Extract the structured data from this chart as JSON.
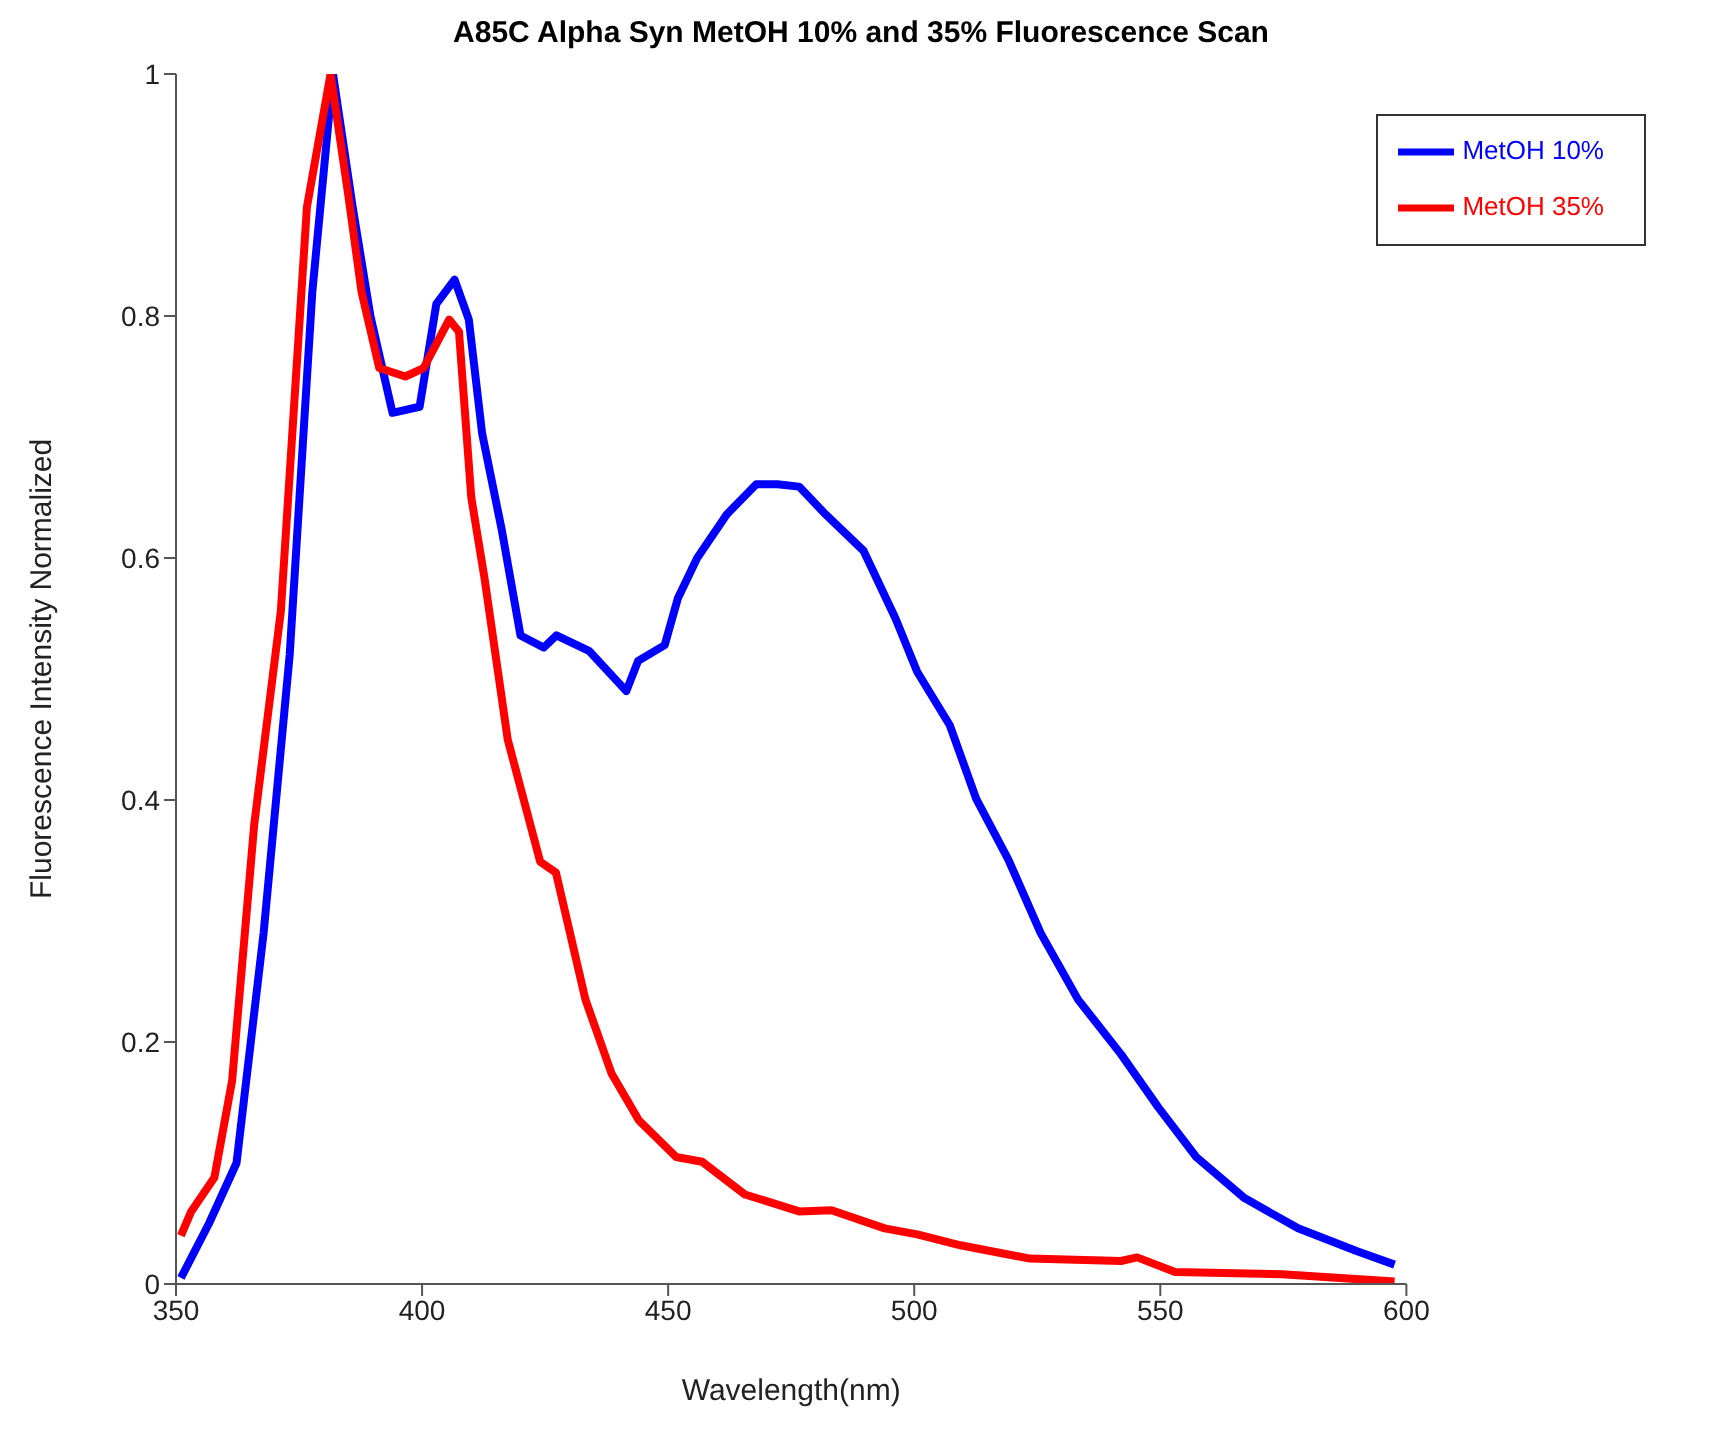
{
  "chart_data": {
    "type": "line",
    "title": "A85C Alpha Syn MetOH 10% and 35% Fluorescence Scan",
    "xlabel": "Wavelength(nm)",
    "ylabel": "Fluorescence Intensity Normalized",
    "xlim": [
      350,
      600
    ],
    "xticks": [
      350,
      400,
      450,
      500,
      550,
      600
    ],
    "ylim": [
      0,
      1
    ],
    "yticks": [
      0,
      0.2,
      0.4,
      0.6,
      0.8,
      1
    ],
    "grid": false,
    "legend": "top right",
    "marker": "none",
    "line_style": "solid",
    "series": [
      {
        "name": "MetOH 10%",
        "color": "#0000ff",
        "x": [
          351,
          356.7,
          362.3,
          367.8,
          373.1,
          377.7,
          381.9,
          385.9,
          389.5,
          394,
          399.5,
          402.9,
          406.6,
          409.5,
          412.2,
          416.2,
          420,
          424.7,
          427.3,
          434,
          441.5,
          443.9,
          449.3,
          452,
          455.9,
          461.9,
          467.9,
          472.2,
          476.6,
          482,
          489.7,
          496.2,
          500.6,
          507.2,
          512.6,
          519.1,
          525.7,
          533.3,
          542,
          549.6,
          557.3,
          567.1,
          578,
          590,
          597.6
        ],
        "values": [
          0.005,
          0.05,
          0.1,
          0.29,
          0.52,
          0.82,
          1.0,
          0.89,
          0.8,
          0.72,
          0.725,
          0.81,
          0.83,
          0.797,
          0.703,
          0.623,
          0.536,
          0.526,
          0.536,
          0.523,
          0.49,
          0.515,
          0.528,
          0.567,
          0.6,
          0.636,
          0.661,
          0.661,
          0.659,
          0.636,
          0.606,
          0.55,
          0.506,
          0.462,
          0.401,
          0.351,
          0.29,
          0.235,
          0.19,
          0.146,
          0.105,
          0.071,
          0.046,
          0.027,
          0.016
        ]
      },
      {
        "name": "MetOH 35%",
        "color": "#ff0000",
        "x": [
          351,
          353.1,
          357.8,
          361.4,
          365.9,
          371.3,
          376.6,
          381.4,
          385,
          387.7,
          391.3,
          396.6,
          400.3,
          405.5,
          407.5,
          410,
          412.7,
          417.4,
          424,
          427.2,
          433.2,
          438.5,
          444.1,
          451.6,
          456.9,
          465.6,
          476.6,
          483.2,
          494,
          500.6,
          509.4,
          523.5,
          542,
          545.3,
          553,
          574.8,
          597.6
        ],
        "values": [
          0.04,
          0.06,
          0.088,
          0.168,
          0.38,
          0.556,
          0.89,
          1.0,
          0.9,
          0.82,
          0.757,
          0.75,
          0.757,
          0.797,
          0.787,
          0.65,
          0.583,
          0.45,
          0.349,
          0.34,
          0.235,
          0.174,
          0.135,
          0.105,
          0.101,
          0.074,
          0.06,
          0.061,
          0.046,
          0.041,
          0.032,
          0.021,
          0.019,
          0.022,
          0.01,
          0.008,
          0.002
        ]
      }
    ]
  }
}
